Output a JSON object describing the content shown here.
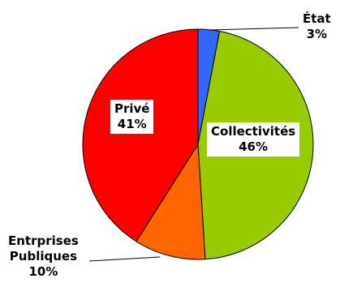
{
  "chart_data": {
    "type": "pie",
    "title": "",
    "start_angle_deg": 0,
    "direction": "clockwise",
    "slices": [
      {
        "name": "État",
        "value": 3,
        "label": "3%",
        "color": "#3366ff"
      },
      {
        "name": "Collectivités",
        "value": 46,
        "label": "46%",
        "color": "#99cc00"
      },
      {
        "name": "Entrprises Publiques",
        "name_lines": [
          "Entrprises",
          "Publiques"
        ],
        "value": 10,
        "label": "10%",
        "color": "#ff6600"
      },
      {
        "name": "Privé",
        "value": 41,
        "label": "41%",
        "color": "#ff0000"
      }
    ]
  }
}
